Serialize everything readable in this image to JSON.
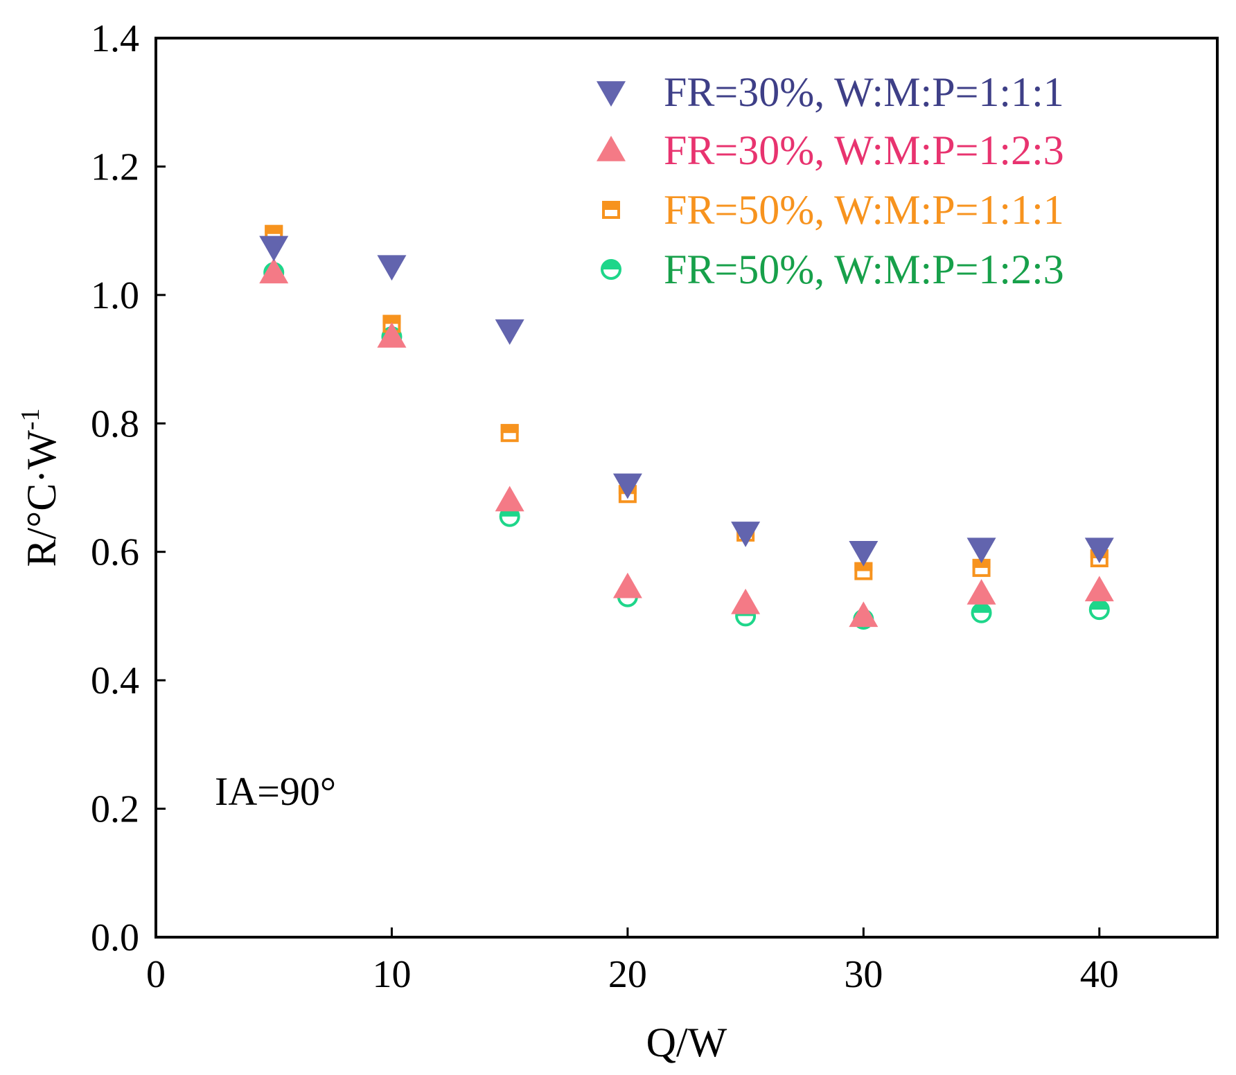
{
  "chart_data": {
    "type": "scatter",
    "title": "",
    "xlabel": "Q/W",
    "ylabel": "R/°C·W",
    "ylabel_superscript": "-1",
    "xlim": [
      0,
      45
    ],
    "ylim": [
      0,
      1.4
    ],
    "xticks": [
      0,
      10,
      20,
      30,
      40
    ],
    "xtick_labels": [
      "0",
      "10",
      "20",
      "30",
      "40"
    ],
    "yticks": [
      0,
      0.2,
      0.4,
      0.6,
      0.8,
      1.0,
      1.2,
      1.4
    ],
    "ytick_labels": [
      "0.0",
      "0.2",
      "0.4",
      "0.6",
      "0.8",
      "1.0",
      "1.2",
      "1.4"
    ],
    "grid": false,
    "legend_position": "top-right",
    "annotation": "IA=90°",
    "series": [
      {
        "name": "FR=30%, W:M:P=1:1:1",
        "marker": "triangle-down",
        "color": "#6264AE",
        "text_color": "#3E3F87",
        "x": [
          5,
          10,
          15,
          20,
          25,
          30,
          35,
          40
        ],
        "y": [
          1.075,
          1.045,
          0.945,
          0.705,
          0.63,
          0.6,
          0.605,
          0.605
        ]
      },
      {
        "name": "FR=30%, W:M:P=1:2:3",
        "marker": "triangle-up",
        "color": "#F47A86",
        "text_color": "#E8336F",
        "x": [
          5,
          10,
          15,
          20,
          25,
          30,
          35,
          40
        ],
        "y": [
          1.035,
          0.935,
          0.68,
          0.545,
          0.52,
          0.5,
          0.535,
          0.54
        ]
      },
      {
        "name": "FR=50%, W:M:P=1:1:1",
        "marker": "square-half",
        "color": "#F7931E",
        "text_color": "#F7931E",
        "x": [
          5,
          10,
          15,
          20,
          25,
          30,
          35,
          40
        ],
        "y": [
          1.095,
          0.955,
          0.785,
          0.69,
          0.63,
          0.57,
          0.575,
          0.59
        ]
      },
      {
        "name": "FR=50%, W:M:P=1:2:3",
        "marker": "circle-half",
        "color": "#1ED68A",
        "text_color": "#17A04A",
        "x": [
          5,
          10,
          15,
          20,
          25,
          30,
          35,
          40
        ],
        "y": [
          1.035,
          0.935,
          0.655,
          0.53,
          0.5,
          0.495,
          0.505,
          0.51
        ]
      }
    ]
  }
}
